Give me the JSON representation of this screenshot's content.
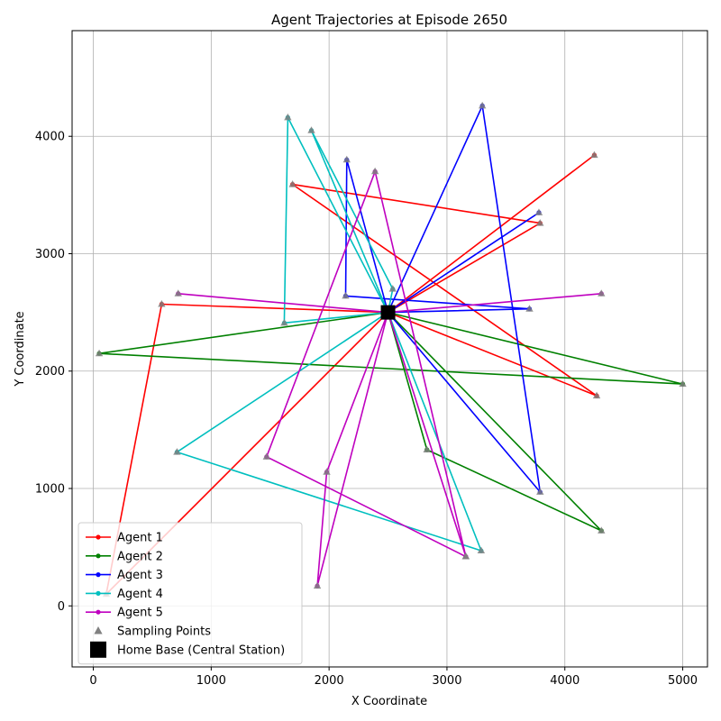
{
  "chart_data": {
    "type": "line",
    "title": "Agent Trajectories at Episode 2650",
    "xlabel": "X Coordinate",
    "ylabel": "Y Coordinate",
    "xlim": [
      -180,
      5210
    ],
    "ylim": [
      -520,
      4900
    ],
    "xticks": [
      0,
      1000,
      2000,
      3000,
      4000,
      5000
    ],
    "yticks": [
      0,
      1000,
      2000,
      3000,
      4000
    ],
    "grid": true,
    "legend_position": "lower-left",
    "home_base": {
      "label": "Home Base (Central Station)",
      "x": 2500,
      "y": 2500,
      "color": "#000000"
    },
    "sampling_points_label": "Sampling Points",
    "sampling_color": "#808080",
    "series": [
      {
        "name": "Agent 1",
        "color": "#ff0000",
        "points": [
          [
            2500,
            2500
          ],
          [
            4270,
            1790
          ],
          [
            1690,
            3590
          ],
          [
            3790,
            3260
          ],
          [
            2500,
            2500
          ],
          [
            110,
            100
          ],
          [
            580,
            2570
          ],
          [
            2500,
            2500
          ],
          [
            4250,
            3840
          ],
          [
            2500,
            2500
          ]
        ]
      },
      {
        "name": "Agent 2",
        "color": "#008000",
        "points": [
          [
            2500,
            2500
          ],
          [
            4310,
            640
          ],
          [
            2830,
            1330
          ],
          [
            2500,
            2500
          ],
          [
            5000,
            1890
          ],
          [
            50,
            2150
          ],
          [
            2500,
            2500
          ]
        ]
      },
      {
        "name": "Agent 3",
        "color": "#0000ff",
        "points": [
          [
            2500,
            2500
          ],
          [
            3780,
            3350
          ],
          [
            2500,
            2500
          ],
          [
            3300,
            4260
          ],
          [
            3790,
            970
          ],
          [
            2500,
            2500
          ],
          [
            2150,
            3800
          ],
          [
            2140,
            2640
          ],
          [
            3700,
            2530
          ],
          [
            2500,
            2500
          ]
        ]
      },
      {
        "name": "Agent 4",
        "color": "#00bfbf",
        "points": [
          [
            2500,
            2500
          ],
          [
            1620,
            2410
          ],
          [
            1650,
            4160
          ],
          [
            2500,
            2500
          ],
          [
            710,
            1310
          ],
          [
            3290,
            470
          ],
          [
            2500,
            2500
          ],
          [
            1850,
            4050
          ],
          [
            2540,
            2700
          ],
          [
            2500,
            2500
          ]
        ]
      },
      {
        "name": "Agent 5",
        "color": "#bf00bf",
        "points": [
          [
            2500,
            2500
          ],
          [
            4310,
            2660
          ],
          [
            2500,
            2500
          ],
          [
            720,
            2660
          ],
          [
            2500,
            2500
          ],
          [
            3160,
            420
          ],
          [
            2390,
            3700
          ],
          [
            1470,
            1270
          ],
          [
            3160,
            420
          ],
          [
            2500,
            2500
          ],
          [
            1900,
            170
          ],
          [
            1980,
            1140
          ],
          [
            2500,
            2500
          ]
        ]
      }
    ]
  }
}
